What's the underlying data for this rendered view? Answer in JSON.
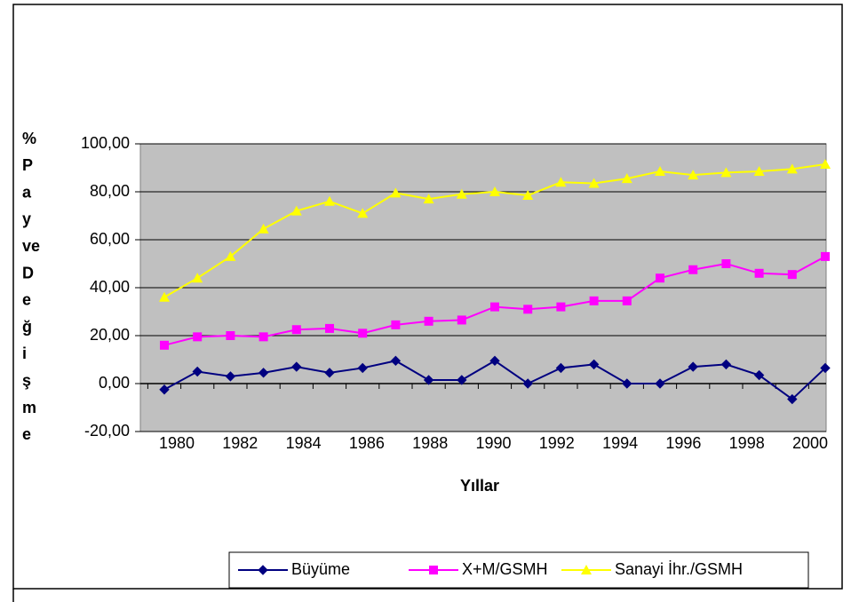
{
  "chart_data": {
    "type": "line",
    "x_label": "Yıllar",
    "y_label": [
      "%",
      "P",
      "a",
      "y",
      "ve",
      "D",
      "e",
      "ğ",
      "i",
      "ş",
      "m",
      "e"
    ],
    "categories": [
      "1980",
      null,
      "1982",
      null,
      "1984",
      null,
      "1986",
      null,
      "1988",
      null,
      "1990",
      null,
      "1992",
      null,
      "1994",
      null,
      "1996",
      null,
      "1998",
      null,
      "2000"
    ],
    "series": [
      {
        "name": "Büyüme",
        "color": "#000080",
        "marker": "diamond",
        "values": [
          -2.5,
          5,
          3,
          4.5,
          7,
          4.5,
          6.5,
          9.5,
          1.5,
          1.5,
          9.5,
          0,
          6.5,
          8,
          0,
          0,
          7,
          8,
          3.5,
          -6.5,
          6.5
        ]
      },
      {
        "name": "X+M/GSMH",
        "color": "#ff00ff",
        "marker": "square",
        "values": [
          16,
          19.5,
          20,
          19.5,
          22.5,
          23,
          21,
          24.5,
          26,
          26.5,
          32,
          31,
          32,
          34.5,
          34.5,
          44,
          47.5,
          50,
          46,
          45.5,
          53
        ]
      },
      {
        "name": "Sanayi İhr./GSMH",
        "color": "#ffff00",
        "marker": "triangle",
        "values": [
          36,
          44,
          53,
          64.5,
          72,
          76,
          71,
          79.5,
          77,
          79,
          80,
          78.5,
          84,
          83.5,
          85.5,
          88.5,
          87,
          88,
          88.5,
          89.5,
          91.5
        ]
      }
    ],
    "ylim": [
      -20,
      100
    ],
    "yticks": [
      {
        "value": -20,
        "label": "-20,00"
      },
      {
        "value": 0,
        "label": "0,00"
      },
      {
        "value": 20,
        "label": "20,00"
      },
      {
        "value": 40,
        "label": "40,00"
      },
      {
        "value": 60,
        "label": "60,00"
      },
      {
        "value": 80,
        "label": "80,00"
      },
      {
        "value": 100,
        "label": "100,00"
      }
    ],
    "grid": true,
    "legend": "bottom"
  }
}
